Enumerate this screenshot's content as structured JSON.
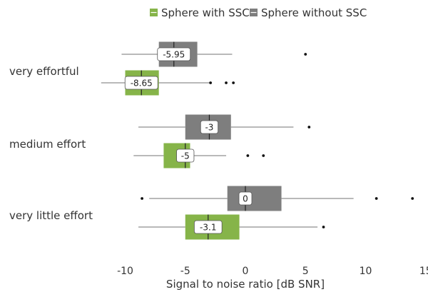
{
  "chart_data": {
    "type": "boxplot",
    "orientation": "horizontal",
    "xlabel": "Signal to noise ratio [dB SNR]",
    "xlim": [
      -12,
      15
    ],
    "xticks": [
      -10,
      -5,
      0,
      5,
      10,
      15
    ],
    "grid": false,
    "legend_position": "top",
    "categories": [
      "very effortful",
      "medium effort",
      "very little effort"
    ],
    "series": [
      {
        "name": "Sphere with SSC",
        "color": "#86b449",
        "boxes": [
          {
            "whisker_low": -12,
            "q1": -10,
            "median": -8.65,
            "q3": -7.2,
            "whisker_high": -3,
            "outliers": [
              -2.9,
              -1.6,
              -1.0
            ],
            "label": "-8.65"
          },
          {
            "whisker_low": -9.3,
            "q1": -6.8,
            "median": -5,
            "q3": -4.6,
            "whisker_high": -1.6,
            "outliers": [
              0.2,
              1.5
            ],
            "label": "-5"
          },
          {
            "whisker_low": -8.9,
            "q1": -5,
            "median": -3.1,
            "q3": -0.5,
            "whisker_high": 6,
            "outliers": [
              6.5
            ],
            "label": "-3.1"
          }
        ]
      },
      {
        "name": "Sphere without SSC",
        "color": "#7e7e7e",
        "boxes": [
          {
            "whisker_low": -10.3,
            "q1": -7.2,
            "median": -5.95,
            "q3": -4,
            "whisker_high": -1.1,
            "outliers": [
              5
            ],
            "label": "-5.95"
          },
          {
            "whisker_low": -8.9,
            "q1": -5,
            "median": -3,
            "q3": -1.2,
            "whisker_high": 4,
            "outliers": [
              5.3
            ],
            "label": "-3"
          },
          {
            "whisker_low": -8,
            "q1": -1.5,
            "median": 0,
            "q3": 3,
            "whisker_high": 9,
            "outliers": [
              -8.6,
              10.9,
              13.9
            ],
            "label": "0"
          }
        ]
      }
    ]
  }
}
